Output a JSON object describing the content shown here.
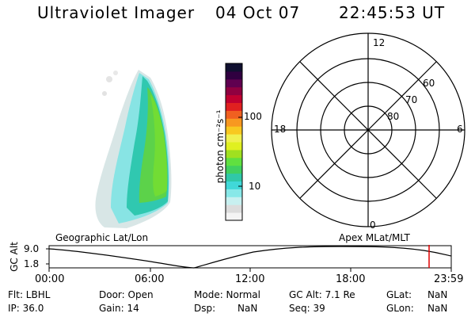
{
  "header": {
    "instrument": "Ultraviolet Imager",
    "date": "04 Oct 07",
    "time": "22:45:53 UT"
  },
  "colorbar": {
    "unit_label": "photon cm⁻²s⁻¹",
    "tick_labels": [
      "100",
      "10"
    ],
    "colors": [
      "#f4f4f4",
      "#dcdcdc",
      "#c8f0f0",
      "#88e8e8",
      "#40d8d8",
      "#30c8a8",
      "#40d060",
      "#60e040",
      "#a0e020",
      "#e0f020",
      "#f0f050",
      "#f8c820",
      "#f89820",
      "#f06020",
      "#e02020",
      "#c00030",
      "#900040",
      "#600050",
      "#300040",
      "#101030"
    ]
  },
  "polar": {
    "mlt_labels": {
      "top": "12",
      "left": "18",
      "right": "6",
      "bottom": "0"
    },
    "lat_labels": [
      "60",
      "70",
      "80"
    ]
  },
  "timeline": {
    "ylabel": "GC Alt",
    "y_ticks": [
      "9.0",
      "1.8"
    ],
    "left_title": "Geographic Lat/Lon",
    "right_title": "Apex  MLat/MLT",
    "x_ticks": [
      "00:00",
      "06:00",
      "12:00",
      "18:00",
      "23:59"
    ],
    "current_marker_color": "#e00000"
  },
  "info": {
    "filt": "Flt: LBHL",
    "ip": "IP: 36.0",
    "door": "Door: Open",
    "gain": "Gain: 14",
    "mode": "Mode: Normal",
    "dsp_label": "Dsp:",
    "dsp_value": "NaN",
    "gcalt": "GC Alt: 7.1 Re",
    "seq": "Seq: 39",
    "glat_label": "GLat:",
    "glat_value": "NaN",
    "glon_label": "GLon:",
    "glon_value": "NaN"
  }
}
